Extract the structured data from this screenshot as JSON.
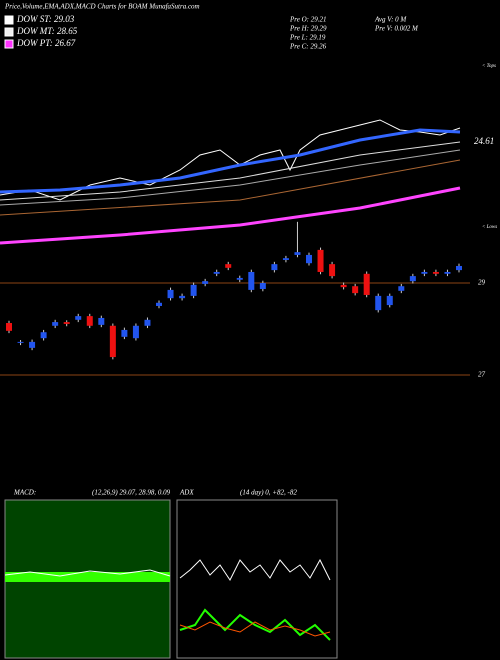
{
  "chart_data": {
    "type": "candlestick",
    "title": "Price,Volume,EMA,ADX,MACD Charts for BOAM MunafaSutra.com",
    "legend": [
      {
        "label": "DOW ST: 29.03",
        "color": "#ffffff"
      },
      {
        "label": "DOW MT: 28.65",
        "color": "#f0f0f0"
      },
      {
        "label": "DOW PT: 26.67",
        "color": "#ff33ff"
      }
    ],
    "info": [
      "Pre  O: 29.21",
      "Pre  H: 29.29",
      "Pre  L: 29.19",
      "Pre  C: 29.26",
      "Avg V: 0  M",
      "Pre  V: 0.002  M"
    ],
    "ema_label": "24.61",
    "tops_label": "< Tops",
    "lows_label": "< Lows",
    "up_color": "#2255ee",
    "down_color": "#ee1111",
    "ylim": [
      26.5,
      30.5
    ],
    "yticks": [
      27,
      29
    ],
    "open": [
      28.13,
      27.7,
      27.59,
      27.8,
      28.07,
      28.15,
      28.2,
      28.28,
      28.09,
      28.07,
      27.83,
      27.8,
      28.07,
      28.5,
      28.67,
      28.67,
      28.72,
      28.98,
      29.2,
      29.41,
      29.07,
      28.85,
      28.87,
      29.28,
      29.5,
      29.61,
      29.43,
      29.72,
      29.41,
      28.96,
      28.93,
      29.2,
      28.41,
      28.52,
      28.83,
      29.04,
      29.2,
      29.24,
      29.2,
      29.28
    ],
    "high": [
      28.18,
      27.76,
      27.77,
      27.98,
      28.2,
      28.19,
      28.33,
      28.33,
      28.29,
      28.12,
      28.03,
      28.12,
      28.25,
      28.62,
      28.9,
      28.77,
      29.01,
      29.09,
      29.29,
      29.46,
      29.16,
      29.29,
      29.05,
      29.46,
      29.59,
      30.33,
      29.66,
      29.77,
      29.46,
      29.01,
      28.98,
      29.25,
      28.77,
      28.77,
      28.98,
      29.2,
      29.29,
      29.29,
      29.29,
      29.42
    ],
    "low": [
      27.91,
      27.65,
      27.54,
      27.75,
      28.02,
      28.06,
      28.15,
      28.02,
      28.04,
      27.34,
      27.78,
      27.75,
      28.02,
      28.45,
      28.62,
      28.62,
      28.67,
      28.93,
      29.15,
      29.28,
      29.02,
      28.8,
      28.82,
      29.23,
      29.45,
      29.56,
      29.38,
      29.19,
      29.1,
      28.86,
      28.73,
      28.69,
      28.36,
      28.47,
      28.78,
      28.99,
      29.15,
      29.15,
      29.15,
      29.23
    ],
    "close": [
      27.96,
      27.72,
      27.72,
      27.93,
      28.15,
      28.11,
      28.28,
      28.07,
      28.24,
      27.39,
      27.98,
      28.07,
      28.2,
      28.57,
      28.85,
      28.72,
      28.96,
      29.04,
      29.24,
      29.33,
      29.11,
      29.24,
      29.0,
      29.41,
      29.54,
      29.67,
      29.61,
      29.24,
      29.15,
      28.91,
      28.78,
      28.74,
      28.72,
      28.72,
      28.93,
      29.15,
      29.24,
      29.2,
      29.24,
      29.37
    ],
    "macd_label": "MACD:",
    "macd_params": "(12,26,9) 29.07, 28.98, 0.09",
    "adx_label": "ADX",
    "adx_params": "(14  day) 0, +82, -82"
  }
}
